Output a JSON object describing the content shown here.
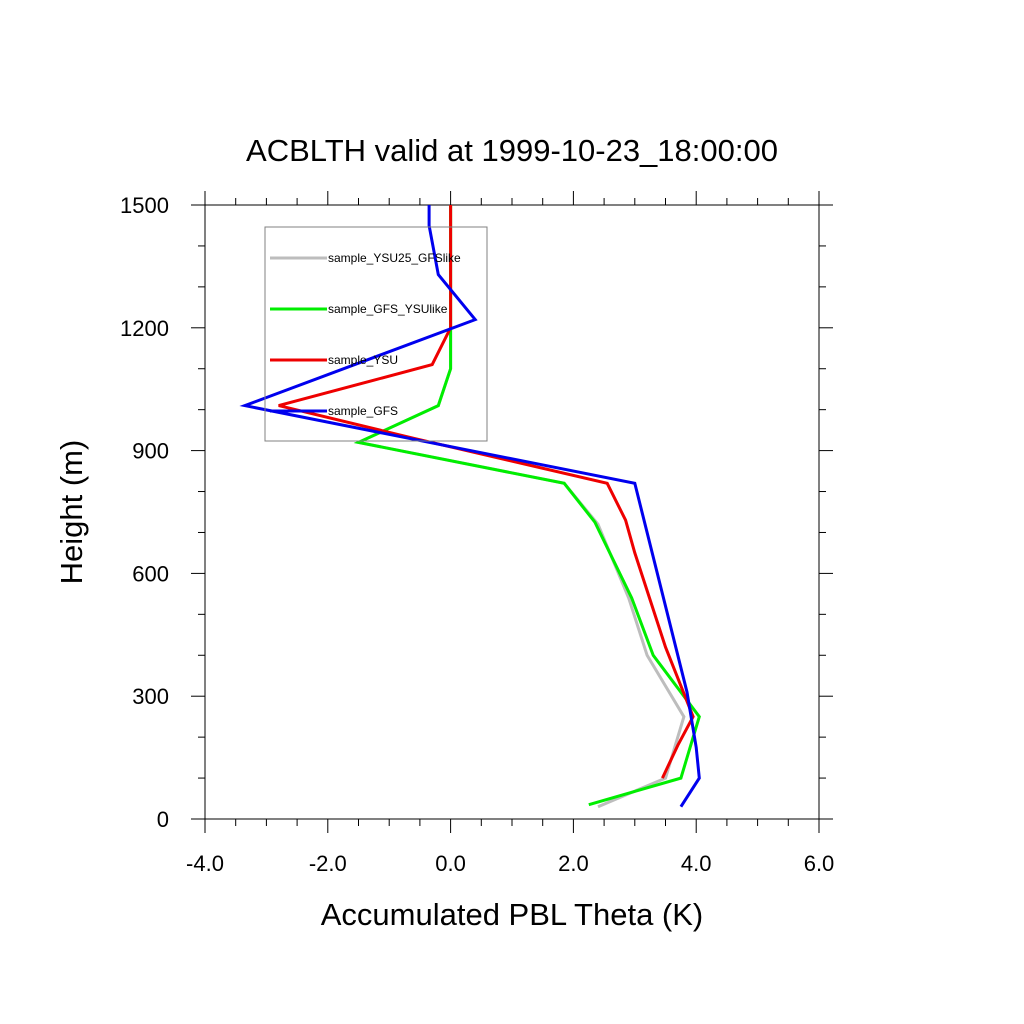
{
  "chart_data": {
    "type": "line",
    "title": "ACBLTH valid at 1999-10-23_18:00:00",
    "xlabel": "Accumulated PBL Theta (K)",
    "ylabel": "Height (m)",
    "xlim": [
      -4.0,
      6.0
    ],
    "ylim": [
      0,
      1500
    ],
    "xticks": [
      -4.0,
      -2.0,
      0.0,
      2.0,
      4.0,
      6.0
    ],
    "xtick_labels": [
      "-4.0",
      "-2.0",
      "0.0",
      "2.0",
      "4.0",
      "6.0"
    ],
    "yticks": [
      0,
      300,
      600,
      900,
      1200,
      1500
    ],
    "ytick_labels": [
      "0",
      "300",
      "600",
      "900",
      "1200",
      "1500"
    ],
    "grid": false,
    "legend_position": "top-left",
    "series": [
      {
        "name": "sample_YSU25_GFSlike",
        "color": "#bdbdbd",
        "points": [
          [
            2.4,
            30
          ],
          [
            3.5,
            100
          ],
          [
            3.8,
            250
          ],
          [
            3.2,
            400
          ],
          [
            2.9,
            540
          ],
          [
            2.4,
            720
          ],
          [
            1.85,
            820
          ],
          [
            -1.5,
            920
          ],
          [
            -0.2,
            1010
          ],
          [
            0.0,
            1100
          ],
          [
            0.0,
            1200
          ],
          [
            0.0,
            1300
          ],
          [
            0.0,
            1400
          ],
          [
            0.0,
            1500
          ]
        ]
      },
      {
        "name": "sample_GFS_YSUlike",
        "color": "#00ee00",
        "points": [
          [
            2.25,
            35
          ],
          [
            3.75,
            100
          ],
          [
            4.05,
            250
          ],
          [
            3.3,
            400
          ],
          [
            2.95,
            540
          ],
          [
            2.35,
            725
          ],
          [
            1.85,
            820
          ],
          [
            -1.5,
            920
          ],
          [
            -0.2,
            1010
          ],
          [
            0.0,
            1100
          ],
          [
            0.0,
            1200
          ],
          [
            0.0,
            1300
          ],
          [
            0.0,
            1400
          ],
          [
            0.0,
            1500
          ]
        ]
      },
      {
        "name": "sample_YSU",
        "color": "#ee0000",
        "points": [
          [
            3.45,
            100
          ],
          [
            3.7,
            180
          ],
          [
            3.95,
            250
          ],
          [
            3.5,
            420
          ],
          [
            3.0,
            650
          ],
          [
            2.85,
            730
          ],
          [
            2.55,
            820
          ],
          [
            -0.6,
            930
          ],
          [
            -2.8,
            1010
          ],
          [
            -0.3,
            1110
          ],
          [
            0.0,
            1200
          ],
          [
            0.0,
            1300
          ],
          [
            0.0,
            1400
          ],
          [
            0.0,
            1500
          ]
        ]
      },
      {
        "name": "sample_GFS",
        "color": "#0000ee",
        "points": [
          [
            3.75,
            30
          ],
          [
            4.05,
            100
          ],
          [
            4.0,
            175
          ],
          [
            3.85,
            310
          ],
          [
            3.0,
            820
          ],
          [
            -3.35,
            1010
          ],
          [
            0.4,
            1220
          ],
          [
            -0.2,
            1330
          ],
          [
            -0.35,
            1450
          ],
          [
            -0.35,
            1500
          ]
        ]
      }
    ]
  }
}
